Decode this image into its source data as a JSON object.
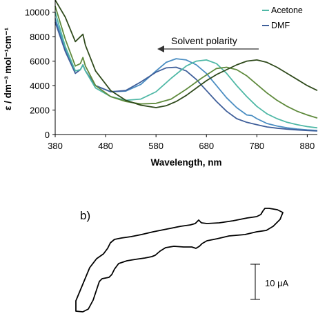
{
  "chart_data": [
    {
      "type": "line",
      "xlabel": "Wavelength, nm",
      "ylabel": "ε / dm⁻³ mol⁻¹cm⁻¹",
      "xlim": [
        380,
        900
      ],
      "ylim": [
        0,
        11000
      ],
      "x_ticks": [
        380,
        480,
        580,
        680,
        780,
        880
      ],
      "y_ticks": [
        0,
        2000,
        4000,
        6000,
        8000,
        10000
      ],
      "grid": false,
      "legend": {
        "placement": "top-right",
        "entries": [
          {
            "label": "Acetone",
            "color": "#4fb8a6"
          },
          {
            "label": "DMF",
            "color": "#3f5f9a"
          }
        ]
      },
      "annotations": [
        {
          "text": "Solvent polarity",
          "arrow": "pointing toward shorter wavelength"
        }
      ],
      "series": [
        {
          "color": "#4a8dc2",
          "x": [
            380,
            400,
            420,
            430,
            435,
            440,
            460,
            490,
            520,
            550,
            580,
            600,
            620,
            640,
            660,
            680,
            700,
            720,
            740,
            760,
            770,
            780,
            800,
            820,
            840,
            860,
            880,
            900
          ],
          "y": [
            9500,
            7000,
            5200,
            5300,
            5700,
            5200,
            4000,
            3500,
            3550,
            4100,
            5200,
            5900,
            6200,
            6100,
            5700,
            5000,
            4000,
            3000,
            2200,
            1600,
            1550,
            1300,
            900,
            700,
            550,
            450,
            380,
            330
          ]
        },
        {
          "color": "#3f5f9a",
          "x": [
            380,
            400,
            420,
            430,
            435,
            440,
            460,
            490,
            520,
            550,
            580,
            600,
            620,
            640,
            660,
            680,
            700,
            720,
            740,
            760,
            780,
            800,
            820,
            840,
            860,
            880,
            900
          ],
          "y": [
            9200,
            6800,
            5000,
            5300,
            5700,
            5200,
            4000,
            3500,
            3600,
            4300,
            5100,
            5450,
            5500,
            5200,
            4500,
            3600,
            2700,
            1900,
            1300,
            1000,
            800,
            620,
            520,
            440,
            380,
            330,
            290
          ]
        },
        {
          "color": "#4fb8a6",
          "x": [
            380,
            400,
            420,
            430,
            435,
            440,
            460,
            490,
            520,
            550,
            580,
            610,
            640,
            660,
            680,
            700,
            720,
            740,
            760,
            780,
            800,
            820,
            840,
            860,
            880,
            900
          ],
          "y": [
            10000,
            7200,
            5200,
            5300,
            5700,
            5200,
            3800,
            3100,
            2800,
            2900,
            3500,
            4600,
            5600,
            6000,
            6100,
            5800,
            5000,
            4000,
            3100,
            2300,
            1700,
            1300,
            1000,
            800,
            650,
            550
          ]
        },
        {
          "color": "#5f8a3c",
          "x": [
            380,
            400,
            420,
            430,
            435,
            440,
            460,
            490,
            520,
            550,
            580,
            610,
            640,
            670,
            700,
            720,
            740,
            760,
            780,
            800,
            820,
            840,
            860,
            880,
            900
          ],
          "y": [
            10500,
            7800,
            5600,
            5800,
            6300,
            5600,
            4000,
            3100,
            2700,
            2500,
            2550,
            2900,
            3700,
            4600,
            5400,
            5500,
            5300,
            4800,
            4100,
            3400,
            2800,
            2300,
            1900,
            1600,
            1350
          ]
        },
        {
          "color": "#2f4a1c",
          "x": [
            380,
            400,
            420,
            430,
            435,
            440,
            460,
            490,
            520,
            550,
            580,
            600,
            620,
            640,
            660,
            680,
            700,
            720,
            740,
            760,
            780,
            800,
            820,
            840,
            860,
            880,
            900
          ],
          "y": [
            11000,
            9600,
            7600,
            8000,
            8200,
            7300,
            5200,
            3600,
            2800,
            2400,
            2200,
            2350,
            2700,
            3200,
            3800,
            4400,
            4900,
            5300,
            5700,
            6000,
            6100,
            5900,
            5500,
            5000,
            4500,
            4000,
            3600
          ]
        }
      ]
    },
    {
      "type": "line",
      "title": "b)",
      "annotations": [
        {
          "text": "10 μA",
          "kind": "scale bar",
          "value": 10,
          "unit": "μA"
        }
      ]
    }
  ]
}
